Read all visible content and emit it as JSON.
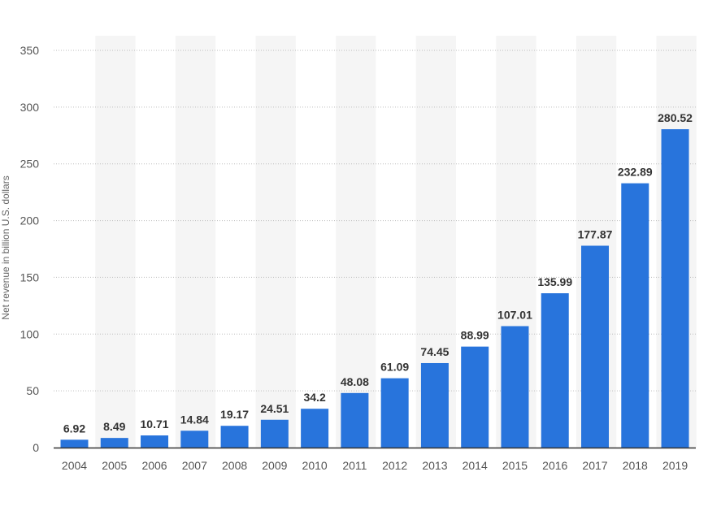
{
  "chart_data": {
    "type": "bar",
    "categories": [
      "2004",
      "2005",
      "2006",
      "2007",
      "2008",
      "2009",
      "2010",
      "2011",
      "2012",
      "2013",
      "2014",
      "2015",
      "2016",
      "2017",
      "2018",
      "2019"
    ],
    "values": [
      6.92,
      8.49,
      10.71,
      14.84,
      19.17,
      24.51,
      34.2,
      48.08,
      61.09,
      74.45,
      88.99,
      107.01,
      135.99,
      177.87,
      232.89,
      280.52
    ],
    "data_labels": [
      "6.92",
      "8.49",
      "10.71",
      "14.84",
      "19.17",
      "24.51",
      "34.2",
      "48.08",
      "61.09",
      "74.45",
      "88.99",
      "107.01",
      "135.99",
      "177.87",
      "232.89",
      "280.52"
    ],
    "ylabel": "Net revenue in billion U.S. dollars",
    "ylim": [
      0,
      350
    ],
    "yticks": [
      0,
      50,
      100,
      150,
      200,
      250,
      300,
      350
    ],
    "ytick_labels": [
      "0",
      "50",
      "100",
      "150",
      "200",
      "250",
      "300",
      "350"
    ],
    "grid": true,
    "bar_color": "#2874dc",
    "band_color": "#f5f5f5"
  }
}
